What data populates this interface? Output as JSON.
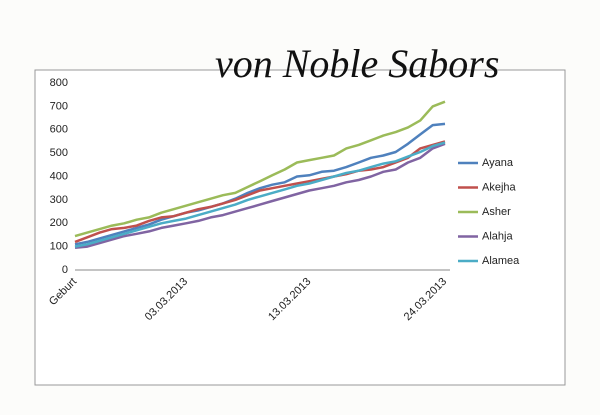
{
  "chart_data": {
    "type": "line",
    "annotation": "von Noble Sabors",
    "categories": [
      "Geburt",
      null,
      null,
      null,
      null,
      null,
      null,
      null,
      null,
      "03.03.2013",
      null,
      null,
      null,
      null,
      null,
      null,
      null,
      null,
      null,
      "13.03.2013",
      null,
      null,
      null,
      null,
      null,
      null,
      null,
      null,
      null,
      null,
      "24.03.2013"
    ],
    "series": [
      {
        "name": "Ayana",
        "color": "#4f81bd",
        "values": [
          110,
          120,
          135,
          150,
          165,
          180,
          195,
          215,
          230,
          245,
          255,
          270,
          285,
          305,
          330,
          350,
          365,
          375,
          400,
          405,
          420,
          425,
          440,
          460,
          480,
          490,
          505,
          540,
          580,
          620,
          625
        ]
      },
      {
        "name": "Akejha",
        "color": "#c0504d",
        "values": [
          120,
          140,
          160,
          175,
          180,
          190,
          210,
          225,
          230,
          245,
          260,
          270,
          285,
          300,
          320,
          340,
          350,
          360,
          370,
          380,
          390,
          400,
          410,
          425,
          430,
          440,
          460,
          480,
          520,
          535,
          550
        ]
      },
      {
        "name": "Asher",
        "color": "#9bbb59",
        "values": [
          145,
          160,
          175,
          190,
          200,
          215,
          225,
          245,
          260,
          275,
          290,
          305,
          320,
          330,
          355,
          380,
          405,
          430,
          460,
          470,
          480,
          490,
          520,
          535,
          555,
          575,
          590,
          610,
          640,
          700,
          720
        ]
      },
      {
        "name": "Alahja",
        "color": "#8064a2",
        "values": [
          95,
          100,
          115,
          130,
          145,
          155,
          165,
          180,
          190,
          200,
          210,
          225,
          235,
          250,
          265,
          280,
          295,
          310,
          325,
          340,
          350,
          360,
          375,
          385,
          400,
          420,
          430,
          460,
          480,
          520,
          540
        ]
      },
      {
        "name": "Alamea",
        "color": "#4bacc6",
        "values": [
          100,
          110,
          125,
          140,
          155,
          170,
          185,
          200,
          210,
          220,
          235,
          250,
          265,
          280,
          300,
          315,
          330,
          345,
          360,
          370,
          385,
          400,
          415,
          425,
          440,
          455,
          465,
          485,
          505,
          530,
          545
        ]
      }
    ],
    "ylim": [
      0,
      800
    ],
    "yticks": [
      0,
      100,
      200,
      300,
      400,
      500,
      600,
      700,
      800
    ],
    "grid": false,
    "legend": "right"
  }
}
